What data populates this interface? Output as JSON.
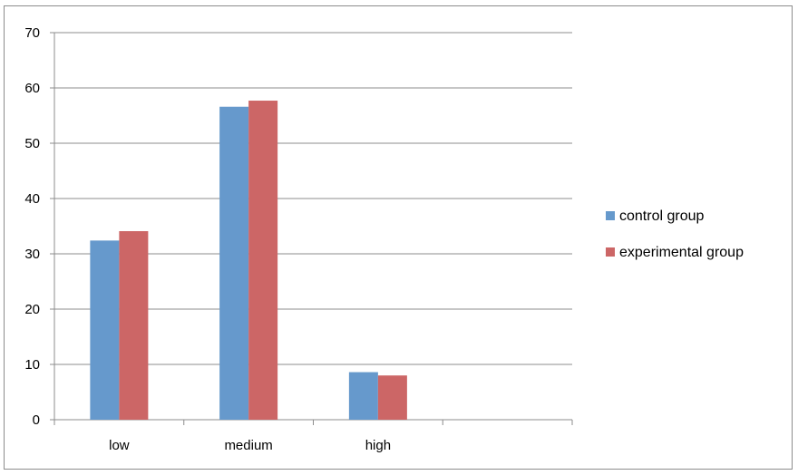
{
  "chart_data": {
    "type": "bar",
    "categories": [
      "low",
      "medium",
      "high",
      ""
    ],
    "series": [
      {
        "name": "control group",
        "color": "#6699cc",
        "values": [
          32.4,
          56.6,
          8.6,
          null
        ]
      },
      {
        "name": "experimental group",
        "color": "#cc6666",
        "values": [
          34.1,
          57.7,
          8.0,
          null
        ]
      }
    ],
    "ylim": [
      0,
      70
    ],
    "yticks": [
      0,
      10,
      20,
      30,
      40,
      50,
      60,
      70
    ],
    "grid": true,
    "legend_position": "right",
    "title": "",
    "xlabel": "",
    "ylabel": ""
  }
}
